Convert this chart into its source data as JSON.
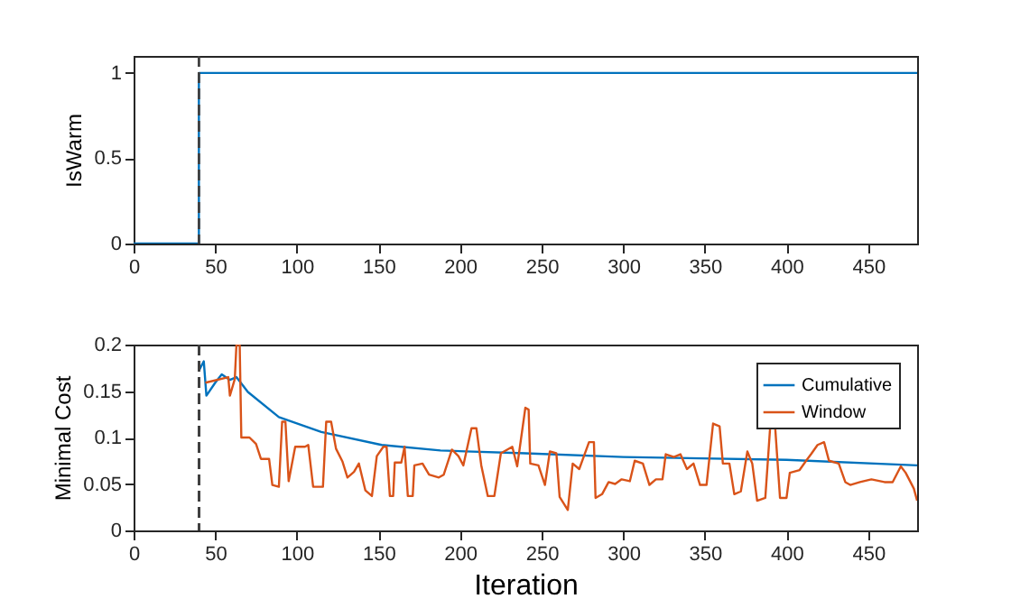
{
  "chart_data": [
    {
      "type": "line",
      "ylabel": "IsWarm",
      "xlim": [
        0,
        480
      ],
      "xticks": [
        0,
        50,
        100,
        150,
        200,
        250,
        300,
        350,
        400,
        450
      ],
      "ylim": [
        0,
        1.1
      ],
      "yticks": [
        0,
        0.5,
        1
      ],
      "grid": false,
      "marker": "none",
      "line_style": "solid",
      "series": [
        {
          "color": "#0072bd",
          "x": [
            0,
            40,
            40,
            480
          ],
          "values": [
            0,
            0,
            1,
            1
          ]
        }
      ],
      "ref_lines": [
        {
          "axis": "x",
          "value": 40,
          "color": "#404040",
          "line_style": "dashed"
        }
      ]
    },
    {
      "type": "line",
      "xlabel": "Iteration",
      "ylabel": "Minimal Cost",
      "xlim": [
        0,
        480
      ],
      "xticks": [
        0,
        50,
        100,
        150,
        200,
        250,
        300,
        350,
        400,
        450
      ],
      "ylim": [
        0,
        0.2
      ],
      "yticks": [
        0,
        0.05,
        0.1,
        0.15,
        0.2
      ],
      "grid": false,
      "legend": "top right",
      "marker": "none",
      "line_style": "solid",
      "series": [
        {
          "name": "Cumulative",
          "color": "#0072bd",
          "x": [
            40,
            43,
            44.6,
            50,
            54,
            59,
            63,
            70,
            89,
            115,
            152,
            188,
            240,
            300,
            400,
            480
          ],
          "values": [
            0.172,
            0.182,
            0.145,
            0.159,
            0.168,
            0.162,
            0.165,
            0.149,
            0.122,
            0.106,
            0.092,
            0.086,
            0.083,
            0.079,
            0.076,
            0.07
          ]
        },
        {
          "name": "Window",
          "color": "#d95319",
          "x": [
            44,
            58,
            59,
            62,
            63,
            65,
            66,
            71,
            75,
            78,
            83,
            85,
            89,
            91,
            93,
            95,
            99,
            105,
            107,
            110,
            116,
            118,
            121,
            124,
            128,
            131,
            135,
            138,
            142,
            146,
            149,
            153,
            155,
            157,
            159,
            160,
            164,
            166,
            168,
            171,
            172,
            177,
            181,
            187,
            190,
            195,
            199,
            202,
            207,
            210,
            213,
            217,
            221,
            225,
            232,
            235,
            240,
            242,
            243,
            248,
            252,
            255,
            259,
            261,
            266,
            269,
            273,
            279,
            282,
            283,
            287,
            291,
            295,
            299,
            304,
            307,
            312,
            316,
            320,
            324,
            326,
            331,
            335,
            339,
            343,
            347,
            351,
            355,
            359,
            361,
            365,
            368,
            372,
            376,
            379,
            382,
            387,
            390,
            393,
            396,
            400,
            402,
            408,
            412,
            415,
            419,
            423,
            426,
            432,
            436,
            439,
            445,
            452,
            460,
            465,
            470,
            473,
            478,
            480
          ],
          "values": [
            0.159,
            0.165,
            0.145,
            0.163,
            0.2,
            0.2,
            0.1,
            0.1,
            0.093,
            0.077,
            0.077,
            0.049,
            0.047,
            0.117,
            0.117,
            0.053,
            0.09,
            0.09,
            0.092,
            0.047,
            0.047,
            0.117,
            0.117,
            0.088,
            0.074,
            0.057,
            0.063,
            0.072,
            0.043,
            0.037,
            0.08,
            0.09,
            0.09,
            0.037,
            0.037,
            0.073,
            0.073,
            0.09,
            0.037,
            0.037,
            0.07,
            0.072,
            0.06,
            0.057,
            0.06,
            0.087,
            0.08,
            0.07,
            0.11,
            0.11,
            0.07,
            0.037,
            0.037,
            0.083,
            0.09,
            0.069,
            0.132,
            0.13,
            0.072,
            0.07,
            0.049,
            0.085,
            0.083,
            0.036,
            0.022,
            0.072,
            0.066,
            0.095,
            0.095,
            0.035,
            0.039,
            0.052,
            0.05,
            0.055,
            0.053,
            0.075,
            0.072,
            0.049,
            0.055,
            0.055,
            0.082,
            0.079,
            0.082,
            0.066,
            0.072,
            0.049,
            0.049,
            0.115,
            0.112,
            0.072,
            0.072,
            0.039,
            0.042,
            0.085,
            0.072,
            0.032,
            0.035,
            0.112,
            0.112,
            0.035,
            0.035,
            0.062,
            0.065,
            0.075,
            0.082,
            0.092,
            0.095,
            0.075,
            0.072,
            0.052,
            0.049,
            0.052,
            0.055,
            0.052,
            0.052,
            0.069,
            0.062,
            0.045,
            0.032
          ]
        }
      ],
      "ref_lines": [
        {
          "axis": "x",
          "value": 40,
          "color": "#404040",
          "line_style": "dashed"
        }
      ]
    }
  ]
}
